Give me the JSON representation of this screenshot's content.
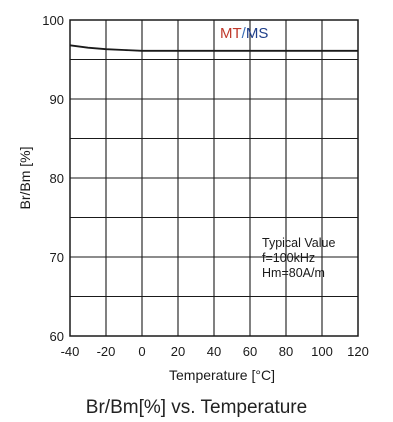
{
  "chart_data": {
    "type": "line",
    "caption": "Br/Bm[%] vs. Temperature",
    "xlabel": "Temperature [°C]",
    "ylabel": "Br/Bm [%]",
    "xlim": [
      -40,
      120
    ],
    "ylim": [
      60,
      100
    ],
    "xticks": [
      -40,
      -20,
      0,
      20,
      40,
      60,
      80,
      100,
      120
    ],
    "yticks": [
      60,
      70,
      80,
      90,
      100
    ],
    "grid": true,
    "series": [
      {
        "name": "MT/MS",
        "x": [
          -40,
          -30,
          -20,
          -10,
          0,
          20,
          40,
          60,
          80,
          100,
          120
        ],
        "y": [
          96.8,
          96.5,
          96.3,
          96.2,
          96.1,
          96.1,
          96.1,
          96.1,
          96.1,
          96.1,
          96.1
        ]
      }
    ],
    "legend": {
      "position": "top-right",
      "part1": "MT",
      "separator": "/",
      "part2": "MS",
      "colors": {
        "part1": "#c0392b",
        "separator": "#3b6fb6",
        "part2": "#1f3f8a"
      }
    },
    "annotation": {
      "position": "lower-right",
      "lines": [
        "Typical Value",
        "f=100kHz",
        "Hm=80A/m"
      ]
    }
  }
}
